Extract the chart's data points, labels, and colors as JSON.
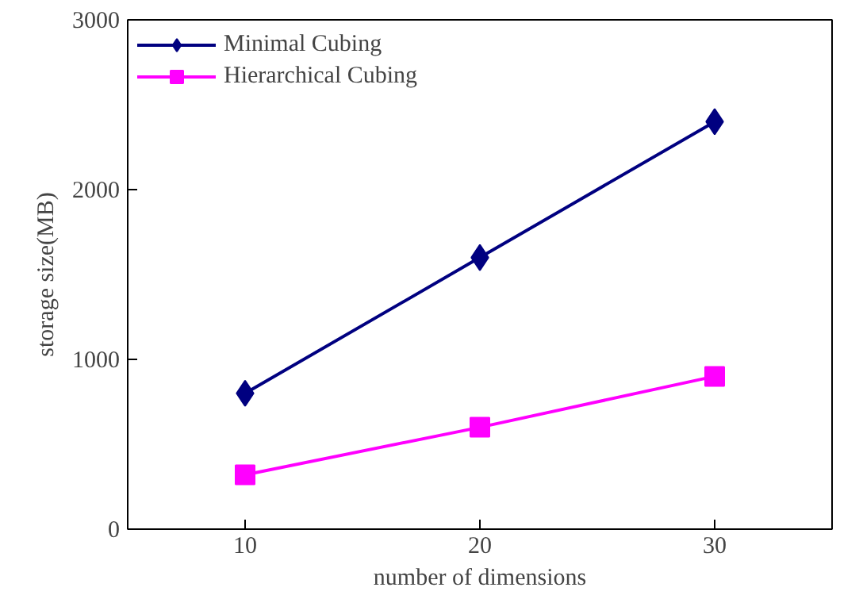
{
  "chart_data": {
    "type": "line",
    "xlabel": "number of dimensions",
    "ylabel": "storage size(MB)",
    "x": [
      10,
      20,
      30
    ],
    "series": [
      {
        "name": "Minimal Cubing",
        "color": "#000080",
        "values": [
          800,
          1600,
          2400
        ],
        "marker": "diamond"
      },
      {
        "name": "Hierarchical Cubing",
        "color": "#ff00ff",
        "values": [
          320,
          600,
          900
        ],
        "marker": "square"
      }
    ],
    "xlim": [
      5,
      35
    ],
    "xticks": [
      10,
      20,
      30
    ],
    "ylim": [
      0,
      3000
    ],
    "yticks": [
      0,
      1000,
      2000,
      3000
    ],
    "grid": false,
    "legend": "top left",
    "line_style": "solid"
  }
}
